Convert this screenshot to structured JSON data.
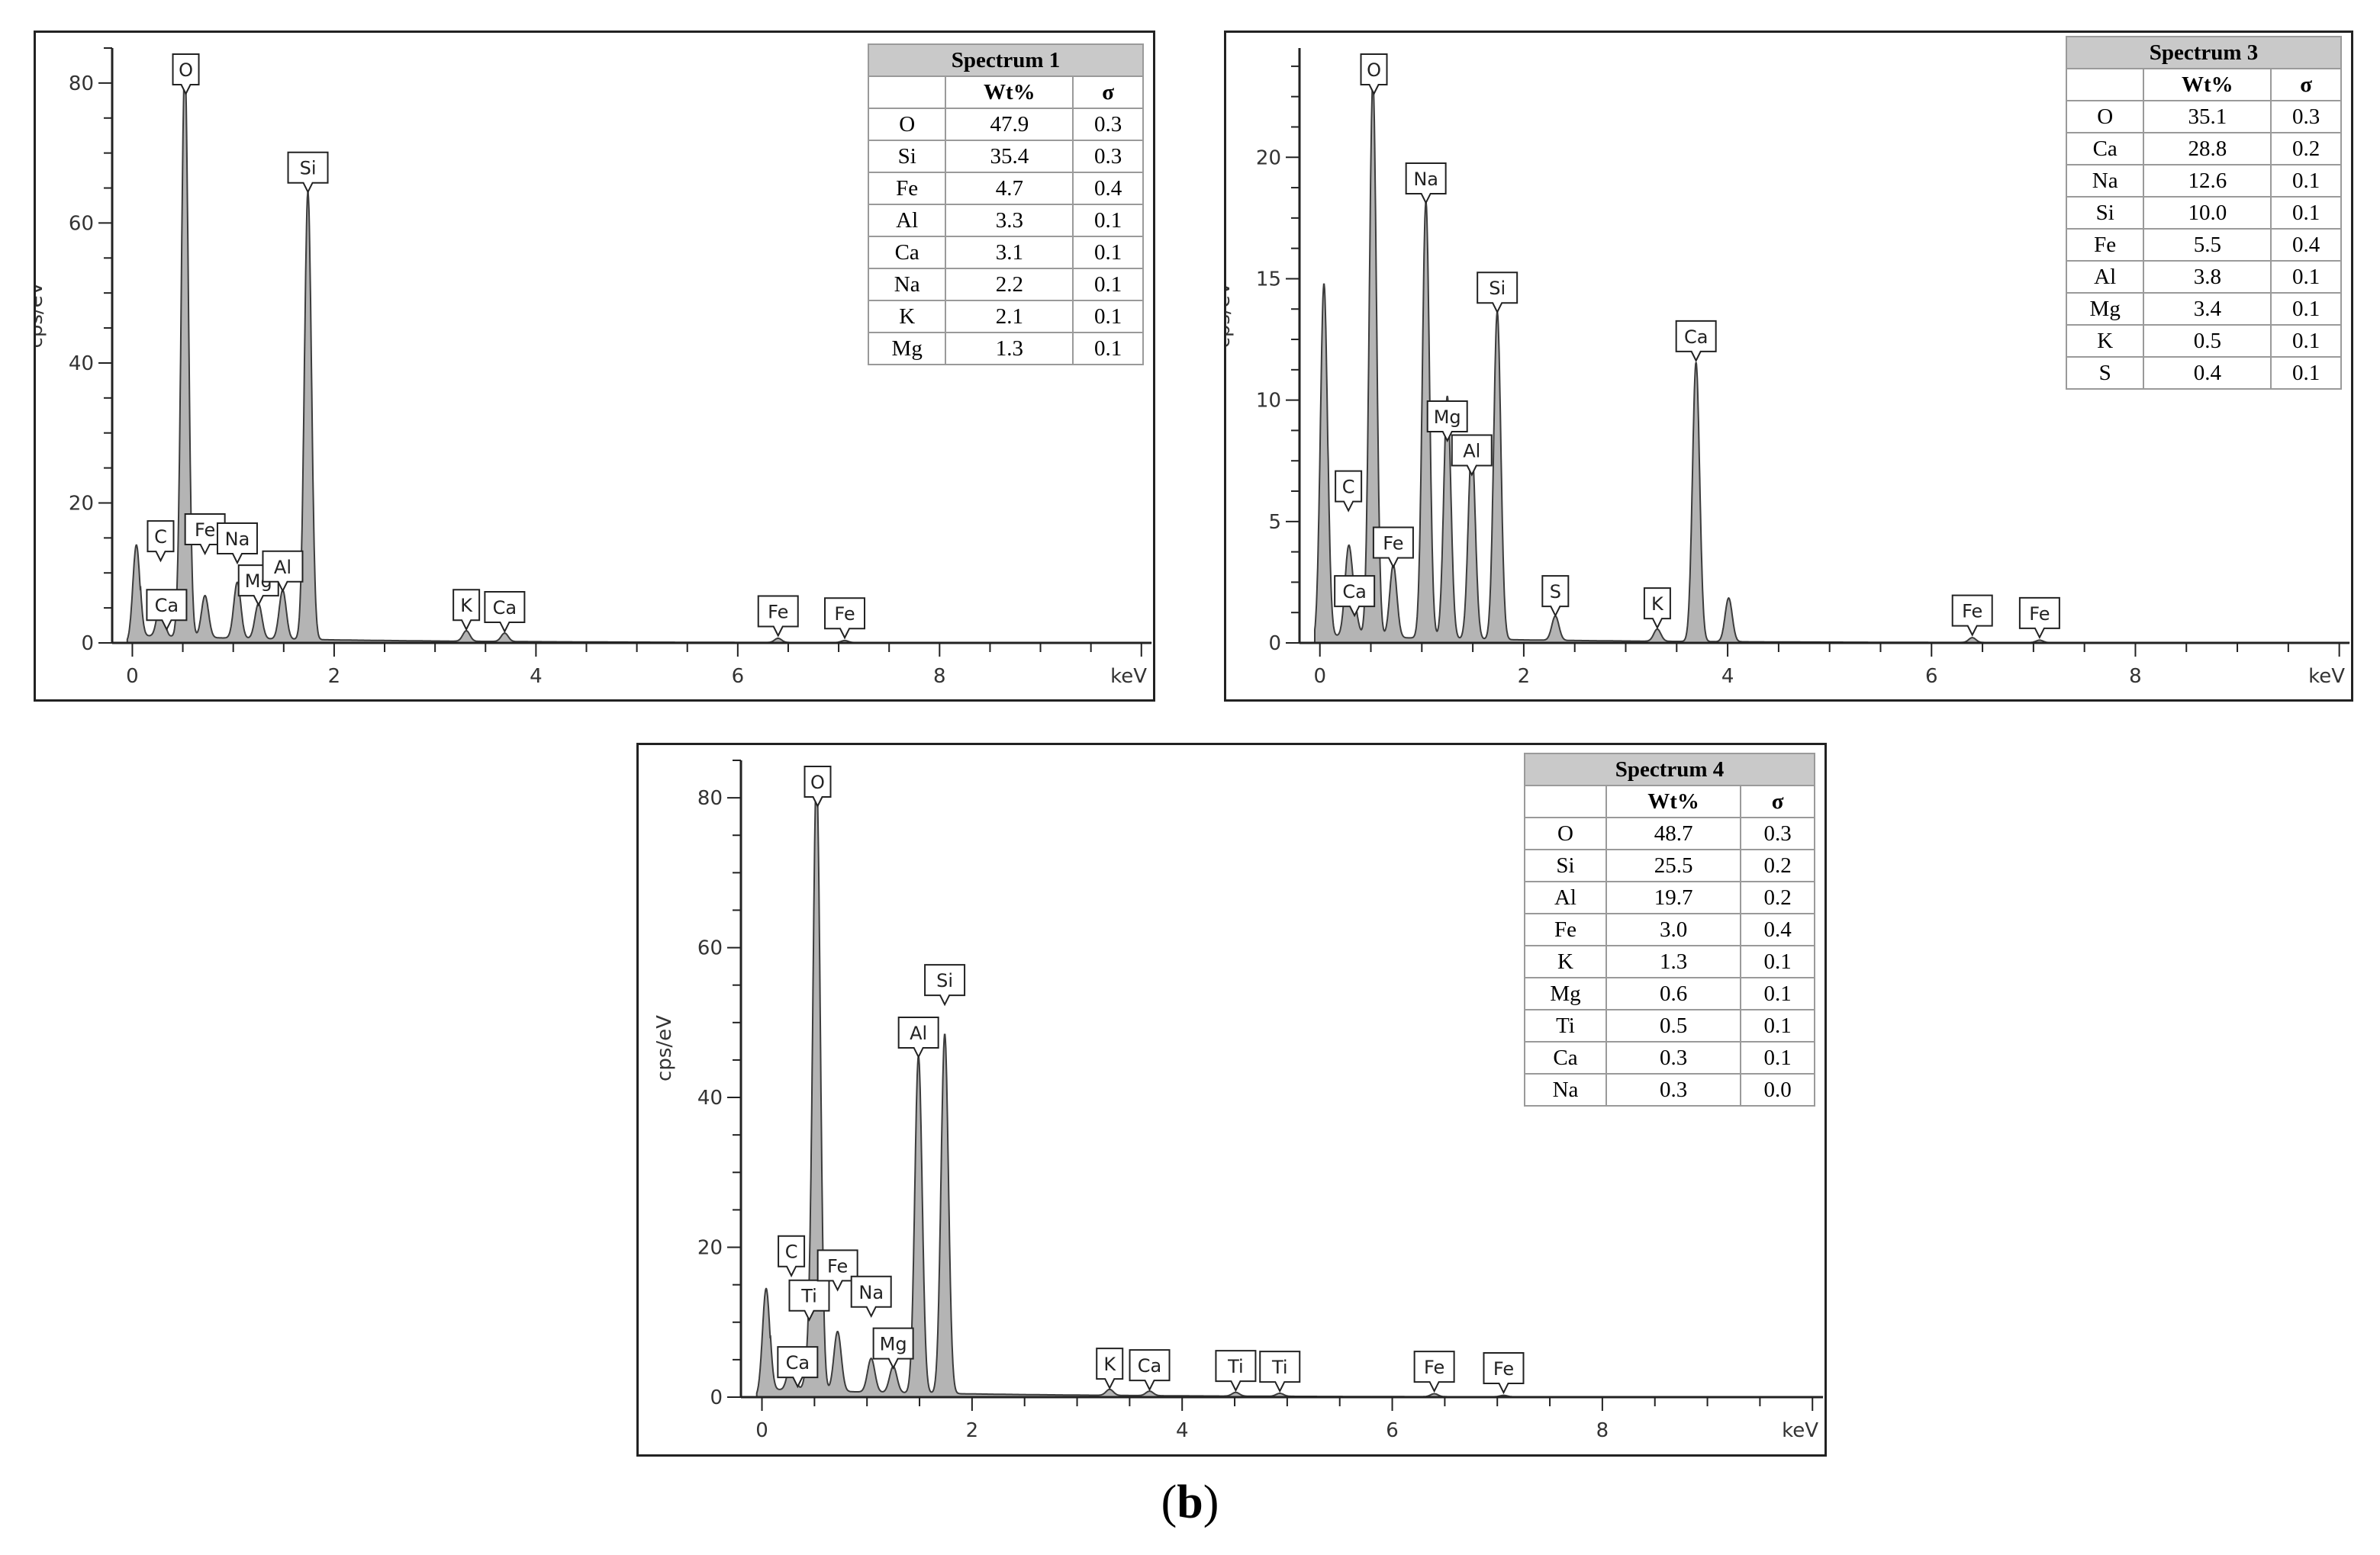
{
  "caption": {
    "open": "(",
    "letter": "b",
    "close": ")"
  },
  "colors": {
    "spectrum_fill": "#b4b4b4",
    "spectrum_line": "#3c3c3c",
    "axis": "#222222",
    "table_header": "#c9c9c9"
  },
  "chart_data": [
    {
      "type": "area",
      "ylabel": "cps/eV",
      "xlabel": "keV",
      "xlim": [
        -0.2,
        10.1
      ],
      "ylim": [
        0,
        85
      ],
      "xticks": [
        "0",
        "2",
        "4",
        "6",
        "8"
      ],
      "yticks": [
        "0",
        "20",
        "40",
        "60",
        "80"
      ],
      "grid": false,
      "peaks": [
        [
          0.04,
          14
        ],
        [
          0.28,
          5
        ],
        [
          0.52,
          82
        ],
        [
          0.72,
          6
        ],
        [
          1.04,
          8
        ],
        [
          1.25,
          5
        ],
        [
          1.49,
          7
        ],
        [
          1.74,
          64
        ],
        [
          3.31,
          1.5
        ],
        [
          3.69,
          1.2
        ],
        [
          6.4,
          0.6
        ],
        [
          7.06,
          0.3
        ]
      ],
      "peak_labels": [
        {
          "text": "O",
          "x": 0.53,
          "y": 82,
          "stack": 0
        },
        {
          "text": "Si",
          "x": 1.74,
          "y": 64,
          "stack": 0
        },
        {
          "text": "C",
          "x": 0.28,
          "y": 5,
          "stack": 1
        },
        {
          "text": "Ca",
          "x": 0.34,
          "y": 1.5,
          "stack": 0
        },
        {
          "text": "Fe",
          "x": 0.72,
          "y": 6,
          "stack": 1
        },
        {
          "text": "Na",
          "x": 1.04,
          "y": 11,
          "stack": 0
        },
        {
          "text": "Mg",
          "x": 1.25,
          "y": 5,
          "stack": 0
        },
        {
          "text": "Al",
          "x": 1.49,
          "y": 7,
          "stack": 0
        },
        {
          "text": "K",
          "x": 3.31,
          "y": 1.5,
          "stack": 0
        },
        {
          "text": "Ca",
          "x": 3.69,
          "y": 1.2,
          "stack": 0
        },
        {
          "text": "Fe",
          "x": 6.4,
          "y": 0.6,
          "stack": 0
        },
        {
          "text": "Fe",
          "x": 7.06,
          "y": 0.3,
          "stack": 0
        }
      ],
      "table": {
        "title": "Spectrum 1",
        "headers": [
          "",
          "Wt%",
          "σ"
        ],
        "rows": [
          [
            "O",
            "47.9",
            "0.3"
          ],
          [
            "Si",
            "35.4",
            "0.3"
          ],
          [
            "Fe",
            "4.7",
            "0.4"
          ],
          [
            "Al",
            "3.3",
            "0.1"
          ],
          [
            "Ca",
            "3.1",
            "0.1"
          ],
          [
            "Na",
            "2.2",
            "0.1"
          ],
          [
            "K",
            "2.1",
            "0.1"
          ],
          [
            "Mg",
            "1.3",
            "0.1"
          ]
        ]
      }
    },
    {
      "type": "area",
      "ylabel": "cps/eV",
      "xlabel": "keV",
      "xlim": [
        -0.2,
        10.1
      ],
      "ylim": [
        0,
        24.5
      ],
      "xticks": [
        "0",
        "2",
        "4",
        "6",
        "8"
      ],
      "yticks": [
        "0",
        "5",
        "10",
        "15",
        "20"
      ],
      "grid": false,
      "peaks": [
        [
          0.04,
          14.8
        ],
        [
          0.28,
          3.5
        ],
        [
          0.34,
          1.0
        ],
        [
          0.52,
          23
        ],
        [
          0.72,
          3.0
        ],
        [
          1.04,
          18
        ],
        [
          1.25,
          10
        ],
        [
          1.49,
          8
        ],
        [
          1.74,
          13.5
        ],
        [
          2.31,
          1.0
        ],
        [
          3.31,
          0.5
        ],
        [
          3.69,
          11.5
        ],
        [
          4.01,
          1.8
        ],
        [
          6.4,
          0.2
        ],
        [
          7.06,
          0.1
        ]
      ],
      "peak_labels": [
        {
          "text": "O",
          "x": 0.53,
          "y": 23,
          "stack": 0
        },
        {
          "text": "Na",
          "x": 1.04,
          "y": 18,
          "stack": 0
        },
        {
          "text": "Si",
          "x": 1.74,
          "y": 13.5,
          "stack": 0
        },
        {
          "text": "Ca",
          "x": 3.69,
          "y": 11.5,
          "stack": 0
        },
        {
          "text": "Mg",
          "x": 1.25,
          "y": 8.2,
          "stack": 0
        },
        {
          "text": "Al",
          "x": 1.49,
          "y": 6.8,
          "stack": 0
        },
        {
          "text": "C",
          "x": 0.28,
          "y": 3.5,
          "stack": 1
        },
        {
          "text": "Ca",
          "x": 0.34,
          "y": 1.0,
          "stack": 0
        },
        {
          "text": "Fe",
          "x": 0.72,
          "y": 3.0,
          "stack": 0
        },
        {
          "text": "S",
          "x": 2.31,
          "y": 1.0,
          "stack": 0
        },
        {
          "text": "K",
          "x": 3.31,
          "y": 0.5,
          "stack": 0
        },
        {
          "text": "Fe",
          "x": 6.4,
          "y": 0.2,
          "stack": 0
        },
        {
          "text": "Fe",
          "x": 7.06,
          "y": 0.1,
          "stack": 0
        }
      ],
      "table": {
        "title": "Spectrum 3",
        "headers": [
          "",
          "Wt%",
          "σ"
        ],
        "rows": [
          [
            "O",
            "35.1",
            "0.3"
          ],
          [
            "Ca",
            "28.8",
            "0.2"
          ],
          [
            "Na",
            "12.6",
            "0.1"
          ],
          [
            "Si",
            "10.0",
            "0.1"
          ],
          [
            "Fe",
            "5.5",
            "0.4"
          ],
          [
            "Al",
            "3.8",
            "0.1"
          ],
          [
            "Mg",
            "3.4",
            "0.1"
          ],
          [
            "K",
            "0.5",
            "0.1"
          ],
          [
            "S",
            "0.4",
            "0.1"
          ]
        ]
      }
    },
    {
      "type": "area",
      "ylabel": "cps/eV",
      "xlabel": "keV",
      "xlim": [
        -0.2,
        10.1
      ],
      "ylim": [
        0,
        85
      ],
      "xticks": [
        "0",
        "2",
        "4",
        "6",
        "8"
      ],
      "yticks": [
        "0",
        "20",
        "40",
        "60",
        "80"
      ],
      "grid": false,
      "peaks": [
        [
          0.04,
          14.5
        ],
        [
          0.28,
          4
        ],
        [
          0.45,
          4
        ],
        [
          0.52,
          82
        ],
        [
          0.72,
          8
        ],
        [
          1.04,
          4.5
        ],
        [
          1.25,
          3.5
        ],
        [
          1.49,
          45
        ],
        [
          1.74,
          48
        ],
        [
          3.31,
          0.8
        ],
        [
          3.69,
          0.6
        ],
        [
          4.51,
          0.5
        ],
        [
          4.93,
          0.4
        ],
        [
          6.4,
          0.4
        ],
        [
          7.06,
          0.2
        ]
      ],
      "peak_labels": [
        {
          "text": "O",
          "x": 0.53,
          "y": 82,
          "stack": 0
        },
        {
          "text": "Si",
          "x": 1.74,
          "y": 52,
          "stack": 0
        },
        {
          "text": "Al",
          "x": 1.49,
          "y": 45,
          "stack": 0
        },
        {
          "text": "C",
          "x": 0.28,
          "y": 4,
          "stack": 2
        },
        {
          "text": "Ti",
          "x": 0.45,
          "y": 4,
          "stack": 1
        },
        {
          "text": "Ca",
          "x": 0.34,
          "y": 1.0,
          "stack": 0
        },
        {
          "text": "Fe",
          "x": 0.72,
          "y": 8,
          "stack": 1
        },
        {
          "text": "Na",
          "x": 1.04,
          "y": 4.5,
          "stack": 1
        },
        {
          "text": "Mg",
          "x": 1.25,
          "y": 3.5,
          "stack": 0
        },
        {
          "text": "K",
          "x": 3.31,
          "y": 0.8,
          "stack": 0
        },
        {
          "text": "Ca",
          "x": 3.69,
          "y": 0.6,
          "stack": 0
        },
        {
          "text": "Ti",
          "x": 4.51,
          "y": 0.5,
          "stack": 0
        },
        {
          "text": "Ti",
          "x": 4.93,
          "y": 0.4,
          "stack": 0
        },
        {
          "text": "Fe",
          "x": 6.4,
          "y": 0.4,
          "stack": 0
        },
        {
          "text": "Fe",
          "x": 7.06,
          "y": 0.2,
          "stack": 0
        }
      ],
      "table": {
        "title": "Spectrum 4",
        "headers": [
          "",
          "Wt%",
          "σ"
        ],
        "rows": [
          [
            "O",
            "48.7",
            "0.3"
          ],
          [
            "Si",
            "25.5",
            "0.2"
          ],
          [
            "Al",
            "19.7",
            "0.2"
          ],
          [
            "Fe",
            "3.0",
            "0.4"
          ],
          [
            "K",
            "1.3",
            "0.1"
          ],
          [
            "Mg",
            "0.6",
            "0.1"
          ],
          [
            "Ti",
            "0.5",
            "0.1"
          ],
          [
            "Ca",
            "0.3",
            "0.1"
          ],
          [
            "Na",
            "0.3",
            "0.0"
          ]
        ]
      }
    }
  ]
}
